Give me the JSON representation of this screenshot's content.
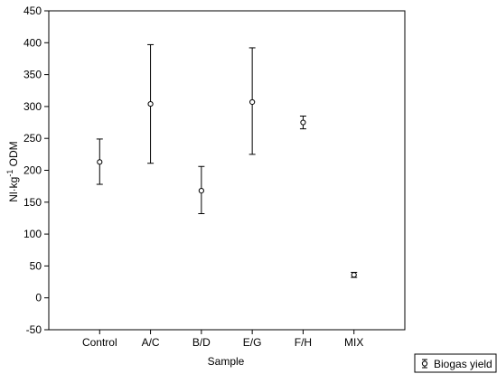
{
  "chart_data": {
    "type": "scatter",
    "subtype": "mean-with-error-bars",
    "categories": [
      "Control",
      "A/C",
      "B/D",
      "E/G",
      "F/H",
      "MIX"
    ],
    "series": [
      {
        "name": "Biogas yield",
        "values": [
          213,
          304,
          168,
          307,
          275,
          36
        ],
        "lower": [
          178,
          211,
          132,
          225,
          265,
          32
        ],
        "upper": [
          249,
          397,
          206,
          392,
          285,
          40
        ]
      }
    ],
    "xlabel": "Sample",
    "ylabel_main": "Nl·kg",
    "ylabel_sup": "-1",
    "ylabel_unit": " ODM",
    "ylim": [
      -50,
      450
    ],
    "yticks": [
      -50,
      0,
      50,
      100,
      150,
      200,
      250,
      300,
      350,
      400,
      450
    ],
    "grid": false,
    "legend": "bottom-right",
    "colors": {
      "marker": "#000000",
      "axis": "#000000",
      "background": "#ffffff"
    }
  }
}
